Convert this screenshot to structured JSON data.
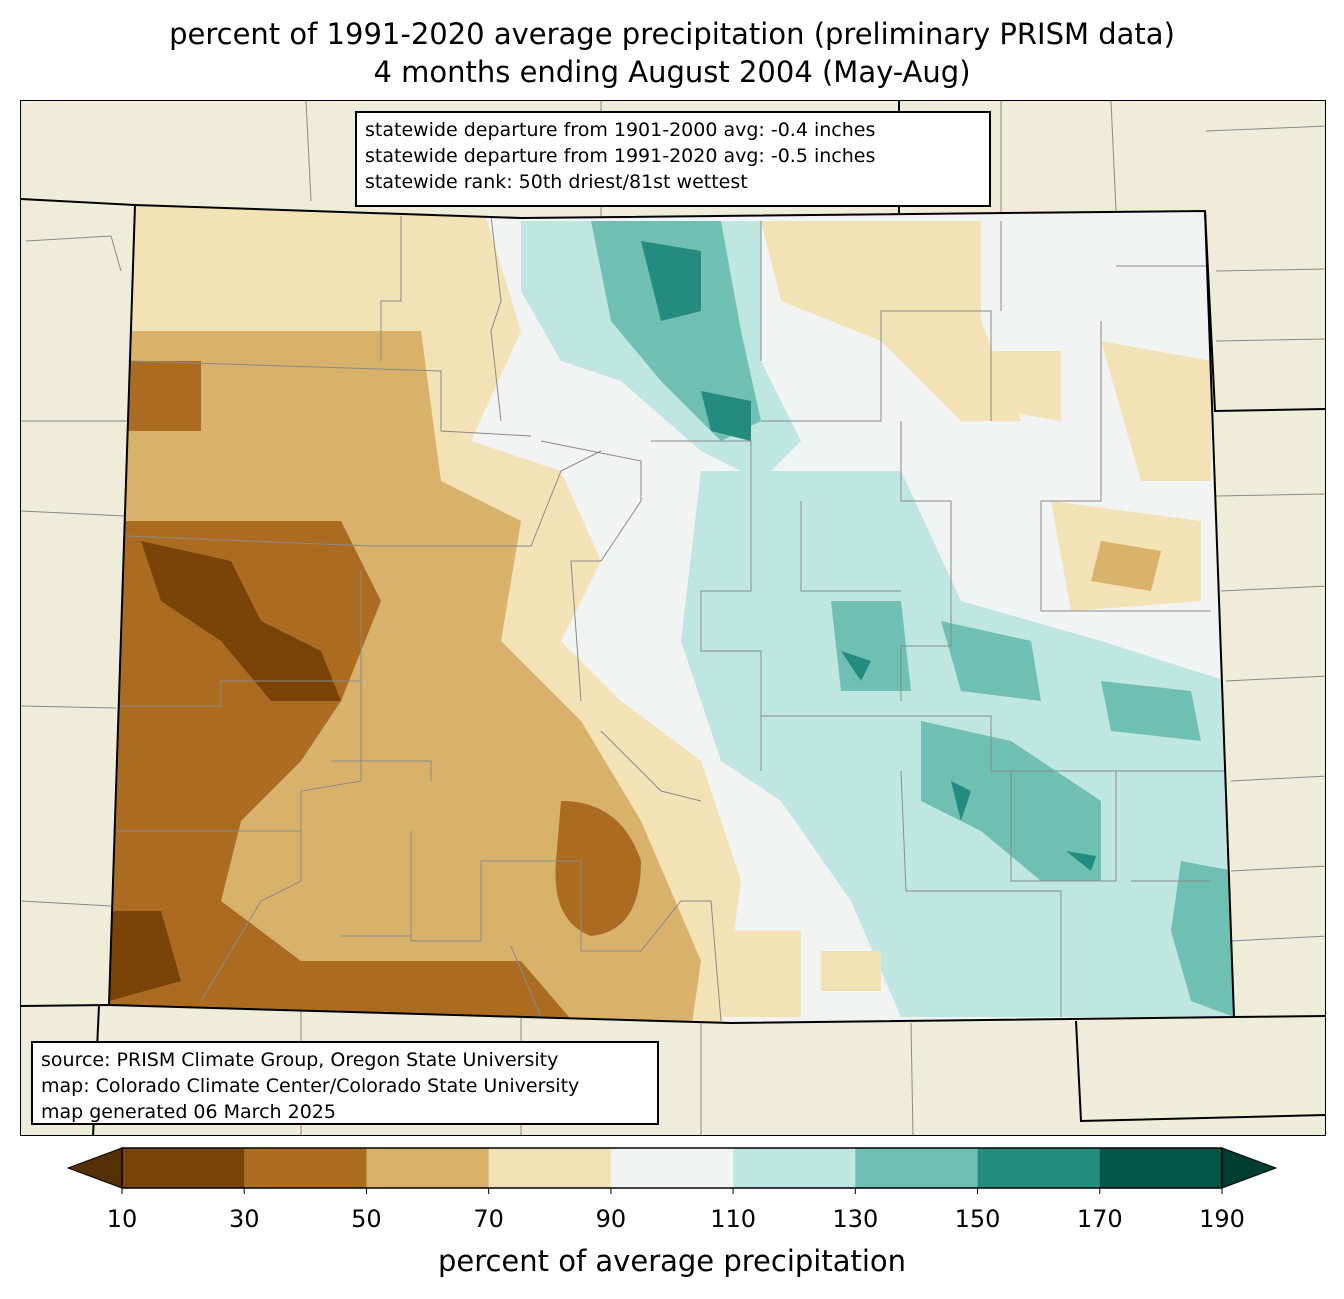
{
  "title_line1": "percent of 1991-2020 average precipitation (preliminary PRISM data)",
  "title_line2": "4 months ending August 2004 (May-Aug)",
  "stats": [
    "statewide departure from 1901-2000 avg: -0.4 inches",
    "statewide departure from 1991-2020 avg: -0.5 inches",
    "statewide rank: 50th driest/81st wettest"
  ],
  "credits": [
    "source: PRISM Climate Group, Oregon State University",
    "map: Colorado Climate Center/Colorado State University",
    "map generated 06 March 2025"
  ],
  "colorbar": {
    "label": "percent of average precipitation",
    "ticks": [
      "10",
      "30",
      "50",
      "70",
      "90",
      "110",
      "130",
      "150",
      "170",
      "190"
    ],
    "colors": [
      "#7a4308",
      "#ab6c22",
      "#d8b16a",
      "#f3e2b6",
      "#f2f4f3",
      "#bfe6e0",
      "#6fc0b3",
      "#238b7f",
      "#015546"
    ],
    "under_color": "#543005",
    "over_color": "#003c30"
  },
  "map_colors": {
    "background_states": "#efecd9",
    "county_lines": "#8a8a8a",
    "state_border": "#000000"
  }
}
